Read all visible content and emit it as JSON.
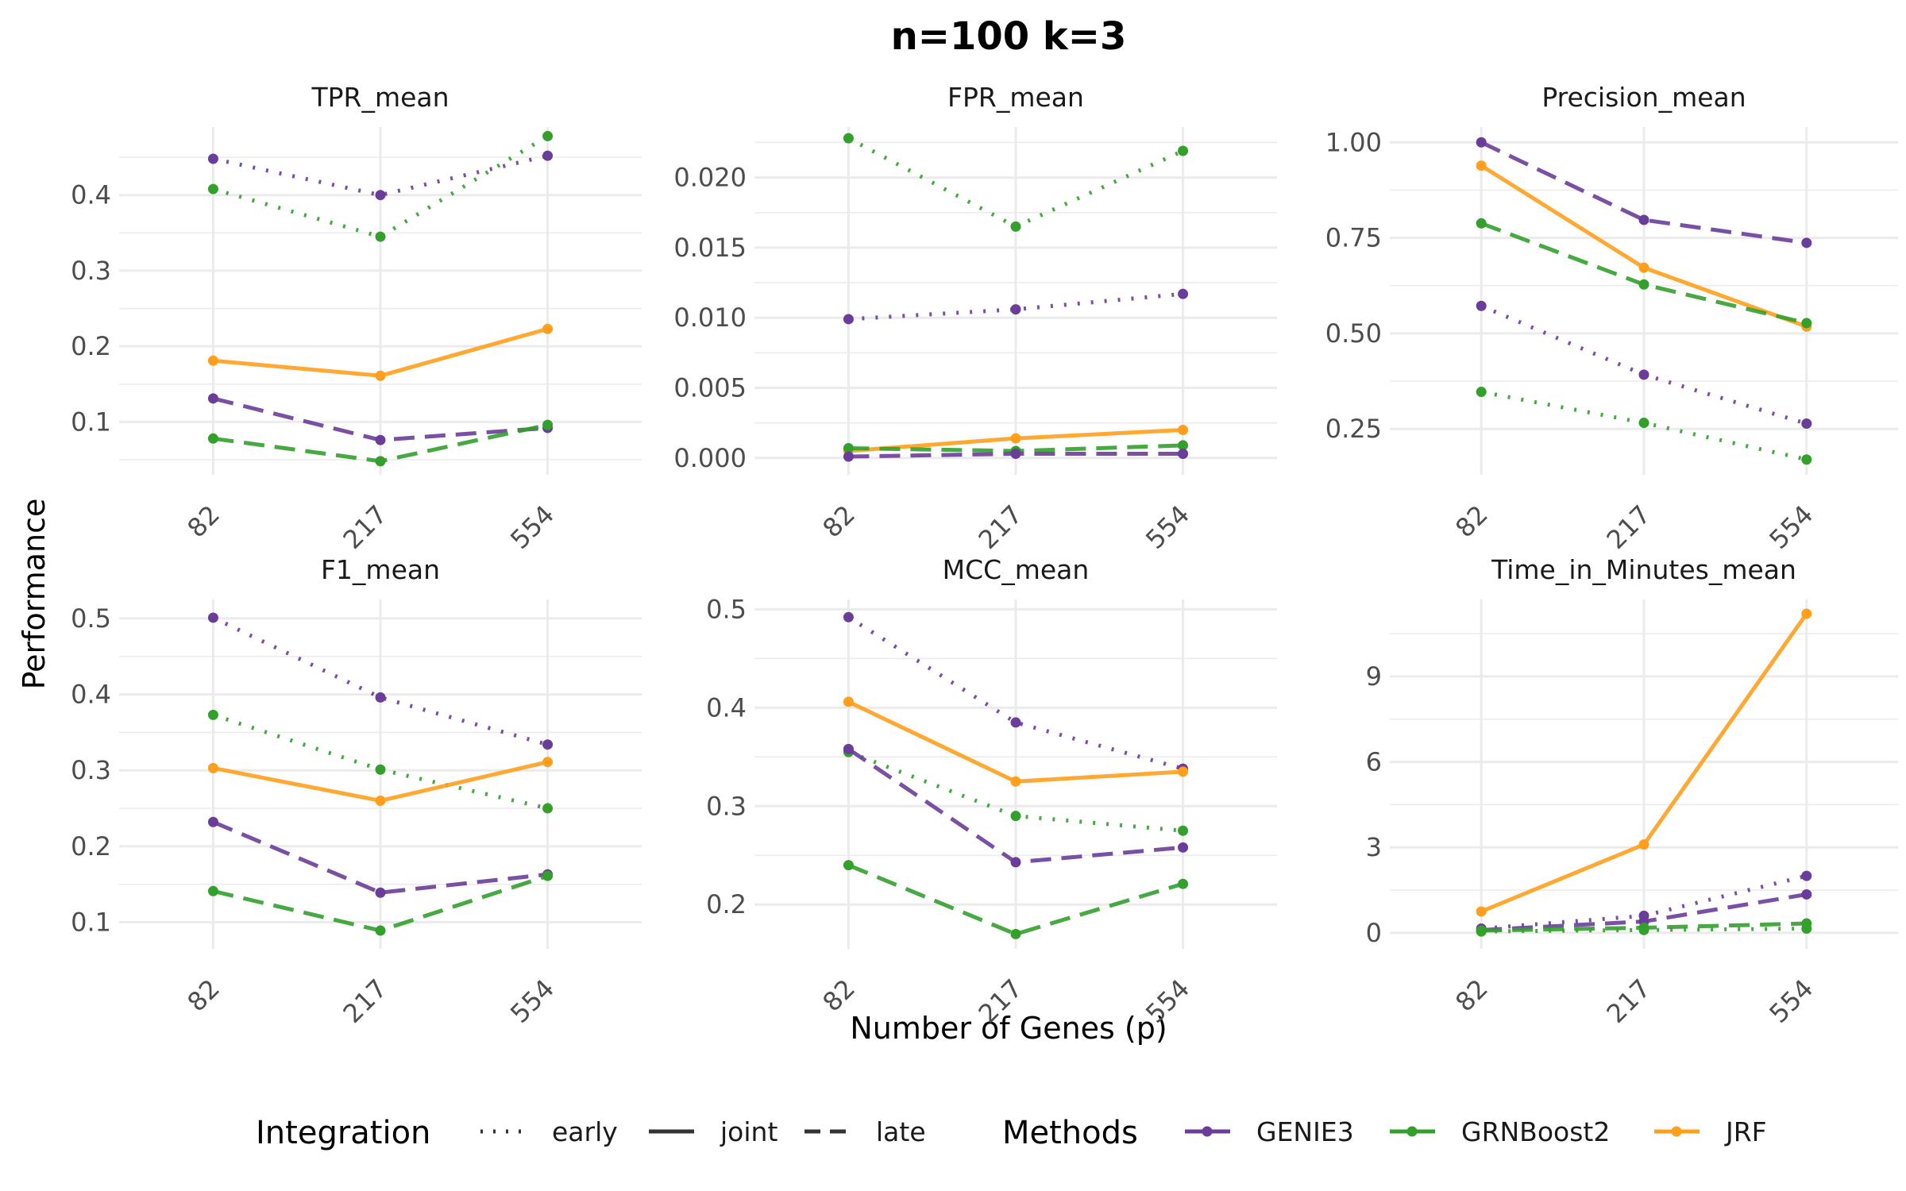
{
  "title": "n=100 k=3",
  "x_axis_title": "Number of Genes (p)",
  "y_axis_title": "Performance",
  "legend": {
    "integration_title": "Integration",
    "integration_items": [
      {
        "label": "early",
        "dash": "dotted"
      },
      {
        "label": "joint",
        "dash": "solid"
      },
      {
        "label": "late",
        "dash": "dashed"
      }
    ],
    "methods_title": "Methods",
    "methods_items": [
      {
        "label": "GENIE3",
        "color": "#6a3d9a"
      },
      {
        "label": "GRNBoost2",
        "color": "#33a02c"
      },
      {
        "label": "JRF",
        "color": "#ff9f1c"
      }
    ]
  },
  "colors": {
    "GENIE3": "#6a3d9a",
    "GRNBoost2": "#33a02c",
    "JRF": "#ff9f1c",
    "grid": "#ebebeb",
    "text": "#4d4d4d"
  },
  "chart_data": [
    {
      "type": "line",
      "title": "TPR_mean",
      "x": [
        "82",
        "217",
        "554"
      ],
      "ylim": [
        0.03,
        0.49
      ],
      "yticks": [
        0.1,
        0.2,
        0.3,
        0.4
      ],
      "ytick_labels": [
        "0.1",
        "0.2",
        "0.3",
        "0.4"
      ],
      "series": [
        {
          "method": "GENIE3",
          "integration": "early",
          "values": [
            0.448,
            0.4,
            0.452
          ]
        },
        {
          "method": "GRNBoost2",
          "integration": "early",
          "values": [
            0.408,
            0.345,
            0.478
          ]
        },
        {
          "method": "JRF",
          "integration": "joint",
          "values": [
            0.181,
            0.161,
            0.223
          ]
        },
        {
          "method": "GENIE3",
          "integration": "late",
          "values": [
            0.131,
            0.076,
            0.092
          ]
        },
        {
          "method": "GRNBoost2",
          "integration": "late",
          "values": [
            0.078,
            0.048,
            0.096
          ]
        }
      ]
    },
    {
      "type": "line",
      "title": "FPR_mean",
      "x": [
        "82",
        "217",
        "554"
      ],
      "ylim": [
        -0.0012,
        0.0236
      ],
      "yticks": [
        0,
        0.005,
        0.01,
        0.015,
        0.02
      ],
      "ytick_labels": [
        "0.000",
        "0.005",
        "0.010",
        "0.015",
        "0.020"
      ],
      "series": [
        {
          "method": "GRNBoost2",
          "integration": "early",
          "values": [
            0.0228,
            0.0165,
            0.0219
          ]
        },
        {
          "method": "GENIE3",
          "integration": "early",
          "values": [
            0.0099,
            0.0106,
            0.0117
          ]
        },
        {
          "method": "JRF",
          "integration": "joint",
          "values": [
            0.0005,
            0.0014,
            0.002
          ]
        },
        {
          "method": "GRNBoost2",
          "integration": "late",
          "values": [
            0.0007,
            0.0005,
            0.0009
          ]
        },
        {
          "method": "GENIE3",
          "integration": "late",
          "values": [
            0.0001,
            0.0003,
            0.0003
          ]
        }
      ]
    },
    {
      "type": "line",
      "title": "Precision_mean",
      "x": [
        "82",
        "217",
        "554"
      ],
      "ylim": [
        0.13,
        1.04
      ],
      "yticks": [
        0.25,
        0.5,
        0.75,
        1.0
      ],
      "ytick_labels": [
        "0.25",
        "0.50",
        "0.75",
        "1.00"
      ],
      "series": [
        {
          "method": "GENIE3",
          "integration": "late",
          "values": [
            1.0,
            0.797,
            0.737
          ]
        },
        {
          "method": "JRF",
          "integration": "joint",
          "values": [
            0.939,
            0.672,
            0.518
          ]
        },
        {
          "method": "GRNBoost2",
          "integration": "late",
          "values": [
            0.788,
            0.628,
            0.527
          ]
        },
        {
          "method": "GENIE3",
          "integration": "early",
          "values": [
            0.572,
            0.392,
            0.264
          ]
        },
        {
          "method": "GRNBoost2",
          "integration": "early",
          "values": [
            0.347,
            0.266,
            0.17
          ]
        }
      ]
    },
    {
      "type": "line",
      "title": "F1_mean",
      "x": [
        "82",
        "217",
        "554"
      ],
      "ylim": [
        0.065,
        0.525
      ],
      "yticks": [
        0.1,
        0.2,
        0.3,
        0.4,
        0.5
      ],
      "ytick_labels": [
        "0.1",
        "0.2",
        "0.3",
        "0.4",
        "0.5"
      ],
      "series": [
        {
          "method": "GENIE3",
          "integration": "early",
          "values": [
            0.501,
            0.396,
            0.334
          ]
        },
        {
          "method": "GRNBoost2",
          "integration": "early",
          "values": [
            0.373,
            0.301,
            0.25
          ]
        },
        {
          "method": "JRF",
          "integration": "joint",
          "values": [
            0.303,
            0.26,
            0.311
          ]
        },
        {
          "method": "GENIE3",
          "integration": "late",
          "values": [
            0.232,
            0.139,
            0.163
          ]
        },
        {
          "method": "GRNBoost2",
          "integration": "late",
          "values": [
            0.141,
            0.089,
            0.161
          ]
        }
      ]
    },
    {
      "type": "line",
      "title": "MCC_mean",
      "x": [
        "82",
        "217",
        "554"
      ],
      "ylim": [
        0.155,
        0.51
      ],
      "yticks": [
        0.2,
        0.3,
        0.4,
        0.5
      ],
      "ytick_labels": [
        "0.2",
        "0.3",
        "0.4",
        "0.5"
      ],
      "series": [
        {
          "method": "GENIE3",
          "integration": "early",
          "values": [
            0.492,
            0.385,
            0.338
          ]
        },
        {
          "method": "JRF",
          "integration": "joint",
          "values": [
            0.406,
            0.325,
            0.335
          ]
        },
        {
          "method": "GRNBoost2",
          "integration": "early",
          "values": [
            0.355,
            0.29,
            0.275
          ]
        },
        {
          "method": "GENIE3",
          "integration": "late",
          "values": [
            0.358,
            0.243,
            0.258
          ]
        },
        {
          "method": "GRNBoost2",
          "integration": "late",
          "values": [
            0.24,
            0.17,
            0.221
          ]
        }
      ]
    },
    {
      "type": "line",
      "title": "Time_in_Minutes_mean",
      "x": [
        "82",
        "217",
        "554"
      ],
      "ylim": [
        -0.56,
        11.7
      ],
      "yticks": [
        0,
        3,
        6,
        9
      ],
      "ytick_labels": [
        "0",
        "3",
        "6",
        "9"
      ],
      "series": [
        {
          "method": "JRF",
          "integration": "joint",
          "values": [
            0.75,
            3.1,
            11.2
          ]
        },
        {
          "method": "GENIE3",
          "integration": "early",
          "values": [
            0.15,
            0.6,
            2.0
          ]
        },
        {
          "method": "GENIE3",
          "integration": "late",
          "values": [
            0.1,
            0.4,
            1.35
          ]
        },
        {
          "method": "GRNBoost2",
          "integration": "late",
          "values": [
            0.08,
            0.18,
            0.33
          ]
        },
        {
          "method": "GRNBoost2",
          "integration": "early",
          "values": [
            0.05,
            0.1,
            0.15
          ]
        }
      ]
    }
  ]
}
